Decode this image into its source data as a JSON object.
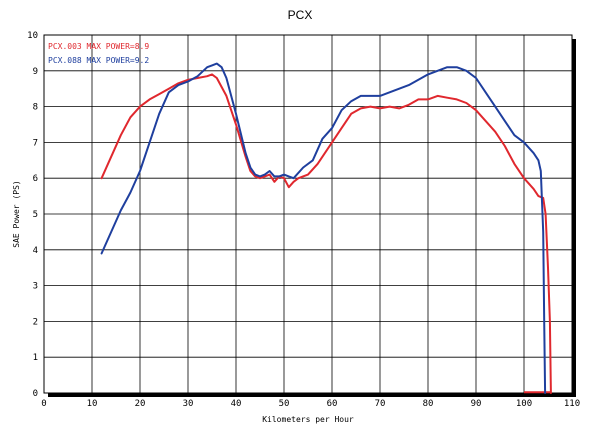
{
  "chart_data": {
    "type": "line",
    "title": "PCX",
    "xlabel": "Kilometers per Hour",
    "ylabel": "SAE Power (PS)",
    "xlim": [
      0,
      110
    ],
    "ylim": [
      0,
      10
    ],
    "xticks": [
      0,
      10,
      20,
      30,
      40,
      50,
      60,
      70,
      80,
      90,
      100,
      110
    ],
    "yticks": [
      0,
      1,
      2,
      3,
      4,
      5,
      6,
      7,
      8,
      9,
      10
    ],
    "grid": true,
    "legend_position": "top-left",
    "series": [
      {
        "name": "PCX.003",
        "legend_label": "PCX.003  MAX POWER=8.9",
        "color": "#e0282e",
        "points": [
          [
            12,
            6.0
          ],
          [
            14,
            6.6
          ],
          [
            16,
            7.2
          ],
          [
            18,
            7.7
          ],
          [
            20,
            8.0
          ],
          [
            22,
            8.2
          ],
          [
            24,
            8.35
          ],
          [
            26,
            8.5
          ],
          [
            28,
            8.65
          ],
          [
            30,
            8.75
          ],
          [
            32,
            8.8
          ],
          [
            34,
            8.85
          ],
          [
            35,
            8.9
          ],
          [
            36,
            8.8
          ],
          [
            38,
            8.3
          ],
          [
            40,
            7.5
          ],
          [
            42,
            6.6
          ],
          [
            43,
            6.2
          ],
          [
            44,
            6.05
          ],
          [
            45,
            6.0
          ],
          [
            46,
            6.05
          ],
          [
            47,
            6.1
          ],
          [
            48,
            5.9
          ],
          [
            49,
            6.05
          ],
          [
            50,
            6.0
          ],
          [
            51,
            5.75
          ],
          [
            52,
            5.9
          ],
          [
            53,
            6.0
          ],
          [
            55,
            6.1
          ],
          [
            57,
            6.4
          ],
          [
            60,
            7.0
          ],
          [
            62,
            7.4
          ],
          [
            64,
            7.8
          ],
          [
            66,
            7.95
          ],
          [
            68,
            8.0
          ],
          [
            70,
            7.95
          ],
          [
            72,
            8.0
          ],
          [
            74,
            7.95
          ],
          [
            76,
            8.05
          ],
          [
            78,
            8.2
          ],
          [
            80,
            8.2
          ],
          [
            82,
            8.3
          ],
          [
            84,
            8.25
          ],
          [
            86,
            8.2
          ],
          [
            88,
            8.1
          ],
          [
            90,
            7.9
          ],
          [
            92,
            7.6
          ],
          [
            94,
            7.3
          ],
          [
            96,
            6.9
          ],
          [
            98,
            6.4
          ],
          [
            100,
            6.0
          ],
          [
            102,
            5.7
          ],
          [
            103,
            5.5
          ],
          [
            104,
            5.45
          ],
          [
            104.5,
            5.0
          ],
          [
            105,
            3.5
          ],
          [
            105.4,
            2.0
          ],
          [
            105.6,
            0.0
          ]
        ]
      },
      {
        "name": "PCX.088",
        "legend_label": "PCX.088  MAX POWER=9.2",
        "color": "#1f3f9e",
        "points": [
          [
            12,
            3.9
          ],
          [
            14,
            4.5
          ],
          [
            16,
            5.1
          ],
          [
            18,
            5.6
          ],
          [
            20,
            6.2
          ],
          [
            22,
            7.0
          ],
          [
            24,
            7.8
          ],
          [
            26,
            8.4
          ],
          [
            28,
            8.6
          ],
          [
            30,
            8.7
          ],
          [
            32,
            8.85
          ],
          [
            34,
            9.1
          ],
          [
            35,
            9.15
          ],
          [
            36,
            9.2
          ],
          [
            37,
            9.1
          ],
          [
            38,
            8.8
          ],
          [
            40,
            7.8
          ],
          [
            42,
            6.7
          ],
          [
            43,
            6.3
          ],
          [
            44,
            6.1
          ],
          [
            45,
            6.05
          ],
          [
            46,
            6.1
          ],
          [
            47,
            6.2
          ],
          [
            48,
            6.05
          ],
          [
            49,
            6.05
          ],
          [
            50,
            6.1
          ],
          [
            51,
            6.05
          ],
          [
            52,
            6.0
          ],
          [
            54,
            6.3
          ],
          [
            56,
            6.5
          ],
          [
            58,
            7.1
          ],
          [
            60,
            7.4
          ],
          [
            62,
            7.9
          ],
          [
            64,
            8.15
          ],
          [
            66,
            8.3
          ],
          [
            68,
            8.3
          ],
          [
            70,
            8.3
          ],
          [
            72,
            8.4
          ],
          [
            74,
            8.5
          ],
          [
            76,
            8.6
          ],
          [
            78,
            8.75
          ],
          [
            80,
            8.9
          ],
          [
            82,
            9.0
          ],
          [
            84,
            9.1
          ],
          [
            86,
            9.1
          ],
          [
            88,
            9.0
          ],
          [
            90,
            8.8
          ],
          [
            92,
            8.4
          ],
          [
            94,
            8.0
          ],
          [
            96,
            7.6
          ],
          [
            98,
            7.2
          ],
          [
            100,
            7.0
          ],
          [
            102,
            6.7
          ],
          [
            103,
            6.5
          ],
          [
            103.5,
            6.2
          ],
          [
            104,
            4.5
          ],
          [
            104.2,
            2.0
          ],
          [
            104.4,
            0.0
          ]
        ]
      }
    ],
    "baseline_segment": {
      "color": "#e0282e",
      "points": [
        [
          100,
          0.02
        ],
        [
          105.6,
          0.02
        ]
      ]
    }
  }
}
